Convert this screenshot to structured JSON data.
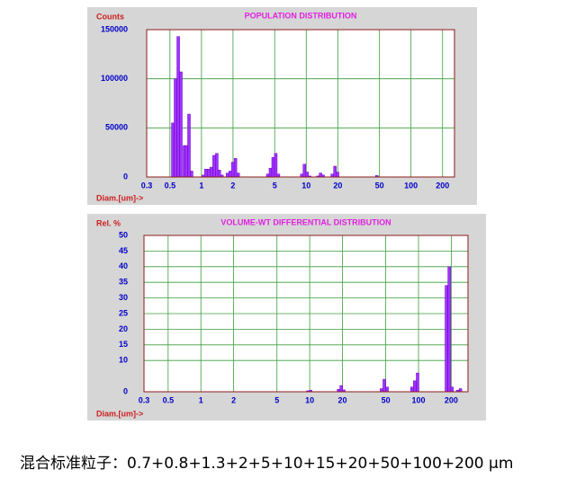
{
  "chart_data": [
    {
      "type": "histogram",
      "title": "POPULATION DISTRIBUTION",
      "y_label": "Counts",
      "x_label": "Diam.[um]->",
      "x_scale": "log",
      "grid": true,
      "color": "#a033ff",
      "x": [
        0.533,
        0.565,
        0.6,
        0.636,
        0.688,
        0.716,
        0.76,
        0.805,
        1.04,
        1.1,
        1.17,
        1.24,
        1.32,
        1.4,
        1.48,
        1.57,
        1.77,
        1.88,
        1.99,
        2.11,
        2.24,
        4.29,
        4.55,
        4.83,
        5.12,
        5.43,
        9.06,
        9.61,
        10.2,
        10.8,
        12.9,
        13.7,
        14.5,
        17.7,
        18.8,
        19.9,
        47.2
      ],
      "values": [
        55000,
        100000,
        143000,
        107000,
        32000,
        32000,
        64000,
        6000,
        2000,
        8000,
        8000,
        10000,
        22000,
        24000,
        7000,
        2000,
        4000,
        6000,
        15000,
        19000,
        4000,
        3000,
        9000,
        20000,
        24000,
        3000,
        3000,
        13000,
        5000,
        1000,
        1000,
        4000,
        2000,
        3000,
        11000,
        5000,
        1500
      ],
      "xlim": [
        0.3,
        260
      ],
      "ylim": [
        0,
        150000
      ],
      "xticks": [
        0.3,
        0.5,
        1,
        2,
        5,
        10,
        20,
        50,
        100,
        200
      ],
      "yticks": [
        0,
        50000,
        100000,
        150000
      ]
    },
    {
      "type": "histogram",
      "title": "VOLUME-WT DIFFERENTIAL DISTRIBUTION",
      "y_label": "Rel. %",
      "x_label": "Diam.[um]->",
      "x_scale": "log",
      "grid": true,
      "color": "#a033ff",
      "x": [
        9.6,
        10.2,
        18.4,
        19.5,
        20.6,
        45.7,
        48.5,
        51.4,
        87.1,
        92.4,
        98.1,
        180.6,
        191.6,
        203.3,
        228.8,
        242.7
      ],
      "values": [
        0.3,
        0.5,
        0.8,
        2,
        0.6,
        1,
        4,
        1.5,
        1.5,
        3.5,
        6,
        34,
        40,
        1.5,
        0.5,
        1
      ],
      "xlim": [
        0.3,
        285
      ],
      "ylim": [
        0,
        50
      ],
      "xticks": [
        0.3,
        0.5,
        1,
        2,
        5,
        10,
        20,
        50,
        100,
        200
      ],
      "yticks": [
        0,
        10,
        15,
        20,
        25,
        30,
        35,
        40,
        45,
        50
      ]
    }
  ],
  "caption": "混合标准粒子：0.7+0.8+1.3+2+5+10+15+20+50+100+200 μm"
}
